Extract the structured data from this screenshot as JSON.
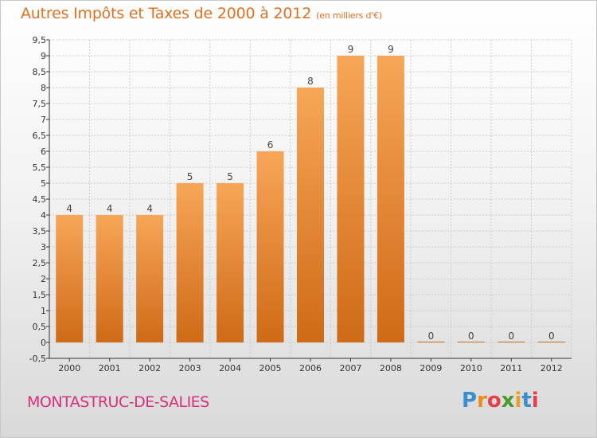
{
  "title": "Autres Impôts et Taxes de 2000 à 2012",
  "title_unit": "(en milliers d'€)",
  "town": "MONTASTRUC-DE-SALIES",
  "logo": {
    "letters": [
      "P",
      "r",
      "o",
      "x",
      "i",
      "t",
      "i"
    ],
    "colors": [
      "#3a8fd0",
      "#f08a1c",
      "#e8404a",
      "#4a9a30",
      "#e8a020",
      "#3a8fd0",
      "#e8404a"
    ]
  },
  "colors": {
    "bar_light": "#f7a658",
    "bar_dark": "#cf6a16",
    "grid": "#cccccc",
    "axis": "#333333",
    "title": "#e07020",
    "town": "#d8307a"
  },
  "chart_data": {
    "type": "bar",
    "categories": [
      "2000",
      "2001",
      "2002",
      "2003",
      "2004",
      "2005",
      "2006",
      "2007",
      "2008",
      "2009",
      "2010",
      "2011",
      "2012"
    ],
    "values": [
      4,
      4,
      4,
      5,
      5,
      6,
      8,
      9,
      9,
      0,
      0,
      0,
      0
    ],
    "data_labels": [
      "4",
      "4",
      "4",
      "5",
      "5",
      "6",
      "8",
      "9",
      "9",
      "0",
      "0",
      "0",
      "0"
    ],
    "title": "Autres Impôts et Taxes de 2000 à 2012",
    "xlabel": "",
    "ylabel": "",
    "ylim": [
      -0.5,
      9.5
    ],
    "yticks": [
      "-0,5",
      "0",
      "0,5",
      "1",
      "1,5",
      "2",
      "2,5",
      "3",
      "3,5",
      "4",
      "4,5",
      "5",
      "5,5",
      "6",
      "6,5",
      "7",
      "7,5",
      "8",
      "8,5",
      "9",
      "9,5"
    ],
    "grid": true,
    "legend": "none"
  }
}
